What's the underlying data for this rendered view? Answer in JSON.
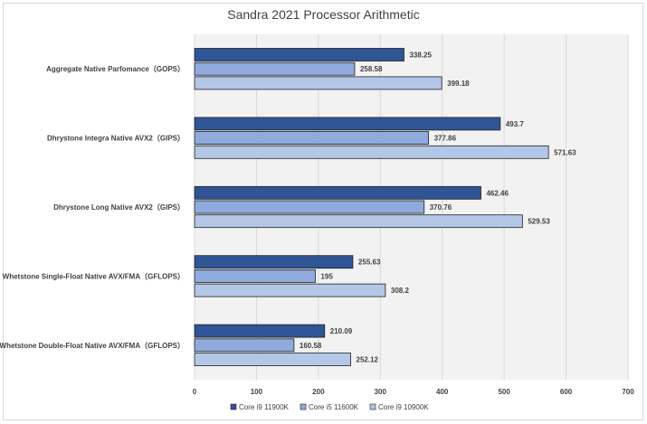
{
  "chart_data": {
    "type": "bar",
    "orientation": "horizontal",
    "title": "Sandra 2021 Processor Arithmetic",
    "categories": [
      "Aggregate Native Parfomance（GOPS）",
      "Dhrystone Integra Native AVX2（GIPS）",
      "Dhrystone Long Native AVX2（GIPS）",
      "Whetstone Single-Float Native AVX/FMA（GFLOPS）",
      "Whetstone Double-Float Native AVX/FMA（GFLOPS）"
    ],
    "series": [
      {
        "name": "Core i9 11900K",
        "color": "#2f5597",
        "values": [
          338.25,
          493.7,
          462.46,
          255.63,
          210.09
        ]
      },
      {
        "name": "Core i5 11600K",
        "color": "#8faadc",
        "values": [
          258.58,
          377.86,
          370.76,
          195,
          160.58
        ]
      },
      {
        "name": "Core i9 10900K",
        "color": "#b4c7e7",
        "values": [
          399.18,
          571.63,
          529.53,
          308.2,
          252.12
        ]
      }
    ],
    "xlim": [
      0,
      700
    ],
    "xticks": [
      0,
      100,
      200,
      300,
      400,
      500,
      600,
      700
    ],
    "grid": true,
    "legend": "bottom",
    "plot_background": "#f2f2f2"
  }
}
